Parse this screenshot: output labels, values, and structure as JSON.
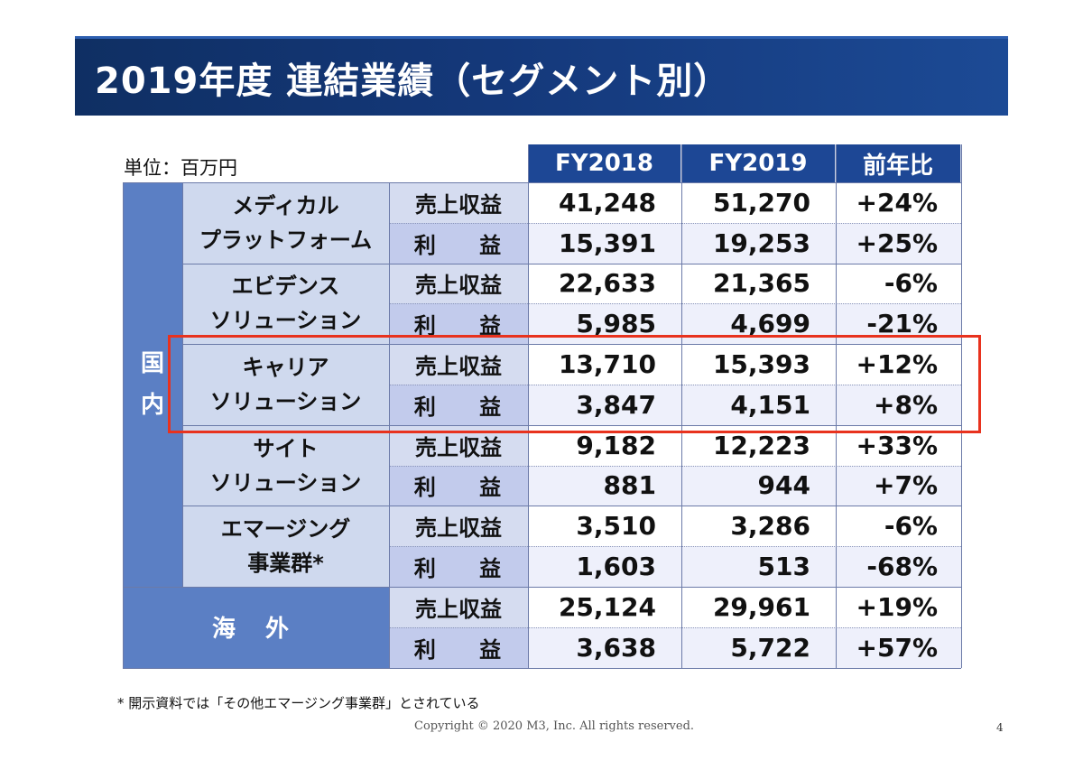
{
  "title": "2019年度 連結業績（セグメント別）",
  "unit": "単位：百万円",
  "columns": [
    "FY2018",
    "FY2019",
    "前年比"
  ],
  "domestic_label": [
    "国",
    "内"
  ],
  "overseas_label": "海 外",
  "revenue_label": "売上収益",
  "profit_label": "利 益",
  "segments": [
    {
      "name": [
        "メディカル",
        "プラットフォーム"
      ],
      "rows": [
        [
          "41,248",
          "51,270",
          "+24%"
        ],
        [
          "15,391",
          "19,253",
          "+25%"
        ]
      ]
    },
    {
      "name": [
        "エビデンス",
        "ソリューション"
      ],
      "rows": [
        [
          "22,633",
          "21,365",
          "-6%"
        ],
        [
          "5,985",
          "4,699",
          "-21%"
        ]
      ]
    },
    {
      "name": [
        "キャリア",
        "ソリューション"
      ],
      "rows": [
        [
          "13,710",
          "15,393",
          "+12%"
        ],
        [
          "3,847",
          "4,151",
          "+8%"
        ]
      ]
    },
    {
      "name": [
        "サイト",
        "ソリューション"
      ],
      "rows": [
        [
          "9,182",
          "12,223",
          "+33%"
        ],
        [
          "881",
          "944",
          "+7%"
        ]
      ]
    },
    {
      "name": [
        "エマージング",
        "事業群*"
      ],
      "rows": [
        [
          "3,510",
          "3,286",
          "-6%"
        ],
        [
          "1,603",
          "513",
          "-68%"
        ]
      ]
    },
    {
      "name": [
        "海 外"
      ],
      "rows": [
        [
          "25,124",
          "29,961",
          "+19%"
        ],
        [
          "3,638",
          "5,722",
          "+57%"
        ]
      ]
    }
  ],
  "footnote": "* 開示資料では「その他エマージング事業群」とされている",
  "copyright": "Copyright © 2020 M3, Inc. All rights reserved.",
  "page_number": "4"
}
